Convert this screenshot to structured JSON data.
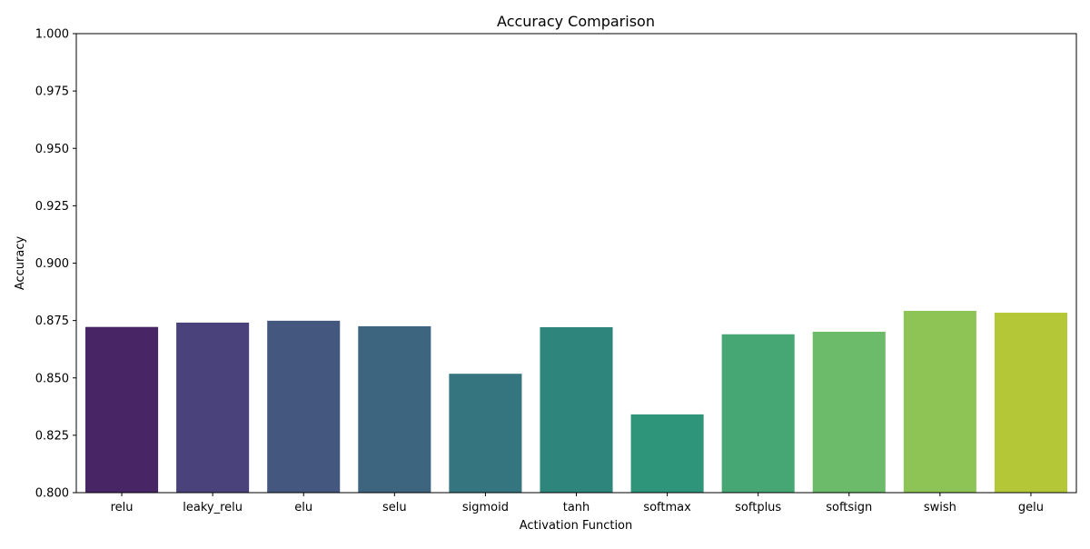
{
  "chart_data": {
    "type": "bar",
    "title": "Accuracy Comparison",
    "xlabel": "Activation Function",
    "ylabel": "Accuracy",
    "ylim": [
      0.8,
      1.0
    ],
    "yticks": [
      "0.800",
      "0.825",
      "0.850",
      "0.875",
      "0.900",
      "0.925",
      "0.950",
      "0.975",
      "1.000"
    ],
    "ytick_values": [
      0.8,
      0.825,
      0.85,
      0.875,
      0.9,
      0.925,
      0.95,
      0.975,
      1.0
    ],
    "categories": [
      "relu",
      "leaky_relu",
      "elu",
      "selu",
      "sigmoid",
      "tanh",
      "softmax",
      "softplus",
      "softsign",
      "swish",
      "gelu"
    ],
    "values": [
      0.8722,
      0.8741,
      0.8749,
      0.8725,
      0.8518,
      0.8721,
      0.8341,
      0.869,
      0.8701,
      0.8792,
      0.8784
    ],
    "colors": [
      "#482666",
      "#4a427b",
      "#44587f",
      "#3d6580",
      "#35757f",
      "#2d857b",
      "#2e947a",
      "#46a774",
      "#6cbb6a",
      "#8ec455",
      "#b4c837"
    ],
    "grid": false,
    "legend": "none"
  }
}
